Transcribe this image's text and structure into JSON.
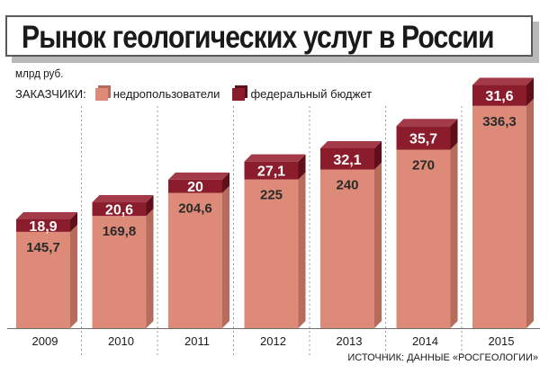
{
  "title": "Рынок геологических услуг в России",
  "unit": "млрд руб.",
  "legend": {
    "label": "ЗАКАЗЧИКИ:",
    "items": [
      "недропользователи",
      "федеральный бюджет"
    ]
  },
  "source": "ИСТОЧНИК: ДАННЫЕ «РОСГЕОЛОГИИ»",
  "colors": {
    "users_front": "#dd8a78",
    "users_side": "#b66c5d",
    "users_top": "#eeb1a3",
    "budget_front": "#8b1c2c",
    "budget_side": "#5e0f1a",
    "budget_top": "#a23a48",
    "gridline": "#9a9a9a"
  },
  "chart_data": {
    "type": "bar",
    "stacked": true,
    "categories": [
      "2009",
      "2010",
      "2011",
      "2012",
      "2013",
      "2014",
      "2015"
    ],
    "series": [
      {
        "name": "недропользователи",
        "values": [
          145.7,
          169.8,
          204.6,
          225,
          240,
          270,
          336.3
        ],
        "labels": [
          "145,7",
          "169,8",
          "204,6",
          "225",
          "240",
          "270",
          "336,3"
        ]
      },
      {
        "name": "федеральный бюджет",
        "values": [
          18.9,
          20.6,
          20,
          27.1,
          32.1,
          35.7,
          31.6
        ],
        "labels": [
          "18,9",
          "20,6",
          "20",
          "27,1",
          "32,1",
          "35,7",
          "31,6"
        ]
      }
    ],
    "ylim": [
      0,
      370
    ],
    "grid": "vertical dashed separators",
    "legend_position": "top-left"
  }
}
